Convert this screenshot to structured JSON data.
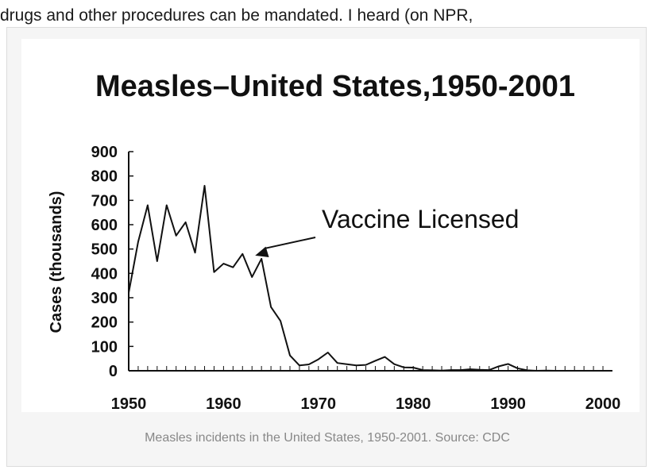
{
  "article": {
    "text_fragment": "drugs and other procedures can be mandated.  I heard (on NPR,"
  },
  "figure": {
    "caption": "Measles incidents in the United States, 1950-2001. Source: CDC"
  },
  "chart_data": {
    "type": "line",
    "title": "Measles–United States,1950-2001",
    "xlabel": "",
    "ylabel": "Cases (thousands)",
    "xlim": [
      1950,
      2000
    ],
    "ylim": [
      0,
      900
    ],
    "xticks": [
      1950,
      1960,
      1970,
      1980,
      1990,
      2000
    ],
    "yticks": [
      0,
      100,
      200,
      300,
      400,
      500,
      600,
      700,
      800,
      900
    ],
    "grid": false,
    "annotation": {
      "text": "Vaccine Licensed",
      "x": 1963,
      "y": 460
    },
    "series": [
      {
        "name": "",
        "x": [
          1950,
          1951,
          1952,
          1953,
          1954,
          1955,
          1956,
          1957,
          1958,
          1959,
          1960,
          1961,
          1962,
          1963,
          1964,
          1965,
          1966,
          1967,
          1968,
          1969,
          1970,
          1971,
          1972,
          1973,
          1974,
          1975,
          1976,
          1977,
          1978,
          1979,
          1980,
          1981,
          1982,
          1983,
          1984,
          1985,
          1986,
          1987,
          1988,
          1989,
          1990,
          1991,
          1992,
          1993,
          1994,
          1995,
          1996,
          1997,
          1998,
          1999,
          2000,
          2001
        ],
        "y": [
          320,
          530,
          680,
          450,
          680,
          555,
          610,
          485,
          760,
          405,
          440,
          425,
          480,
          385,
          460,
          262,
          205,
          63,
          22,
          26,
          47,
          75,
          32,
          27,
          22,
          24,
          41,
          57,
          27,
          14,
          13,
          3,
          2,
          1,
          3,
          3,
          6,
          4,
          3,
          18,
          28,
          10,
          2,
          0,
          1,
          0,
          0,
          0,
          0,
          0,
          0,
          0
        ]
      }
    ]
  }
}
